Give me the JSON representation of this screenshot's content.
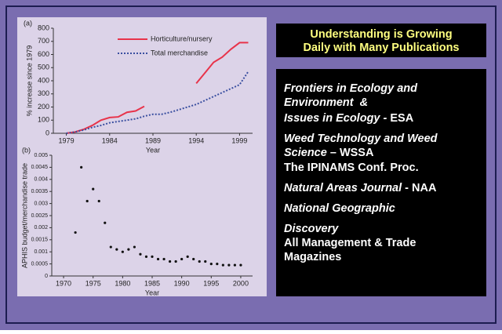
{
  "chart_data": [
    {
      "type": "line",
      "panel": "(a)",
      "ylabel": "% increase since 1979",
      "xlabel": "Year",
      "x": [
        1979,
        1980,
        1981,
        1982,
        1983,
        1984,
        1985,
        1986,
        1987,
        1988,
        1989,
        1990,
        1991,
        1992,
        1993,
        1994,
        1995,
        1996,
        1997,
        1998,
        1999,
        2000
      ],
      "series": [
        {
          "name": "Horticulture/nursery",
          "color": "#e8334a",
          "style": "solid",
          "values": [
            0,
            10,
            30,
            60,
            100,
            120,
            125,
            160,
            170,
            205,
            null,
            null,
            null,
            null,
            null,
            380,
            460,
            540,
            580,
            640,
            690,
            690
          ]
        },
        {
          "name": "Total merchandise",
          "color": "#3a4fa0",
          "style": "dotted",
          "values": [
            0,
            10,
            25,
            45,
            60,
            80,
            90,
            100,
            110,
            130,
            145,
            145,
            160,
            180,
            200,
            220,
            250,
            280,
            310,
            340,
            370,
            470
          ]
        }
      ],
      "xlim": [
        1977.5,
        2000.5
      ],
      "xticks": [
        1979,
        1984,
        1989,
        1994,
        1999
      ],
      "ylim": [
        0,
        800
      ],
      "yticks": [
        0,
        100,
        200,
        300,
        400,
        500,
        600,
        700,
        800
      ],
      "legend": "upper center"
    },
    {
      "type": "scatter",
      "panel": "(b)",
      "ylabel": "APHIS budget/merchandise trade",
      "xlabel": "Year",
      "color": "#111111",
      "x": [
        1972,
        1973,
        1974,
        1975,
        1976,
        1977,
        1978,
        1979,
        1980,
        1981,
        1982,
        1983,
        1984,
        1985,
        1986,
        1987,
        1988,
        1989,
        1990,
        1991,
        1992,
        1993,
        1994,
        1995,
        1996,
        1997,
        1998,
        1999,
        2000
      ],
      "values": [
        0.0018,
        0.0045,
        0.0031,
        0.0036,
        0.0031,
        0.0022,
        0.0012,
        0.0011,
        0.001,
        0.0011,
        0.0012,
        0.0009,
        0.0008,
        0.0008,
        0.0007,
        0.0007,
        0.0006,
        0.0006,
        0.0007,
        0.0008,
        0.0007,
        0.0006,
        0.0006,
        0.0005,
        0.0005,
        0.00045,
        0.00045,
        0.00045,
        0.00045
      ],
      "xlim": [
        1968,
        2002
      ],
      "xticks": [
        1970,
        1975,
        1980,
        1985,
        1990,
        1995,
        2000
      ],
      "ylim": [
        0,
        0.005
      ],
      "yticks": [
        0,
        0.0005,
        0.001,
        0.0015,
        0.002,
        0.0025,
        0.003,
        0.0035,
        0.004,
        0.0045,
        0.005
      ]
    }
  ],
  "heading": [
    "Understanding is Growing",
    "Daily with Many Publications"
  ],
  "publications": [
    [
      {
        "text": "Frontiers in Ecology and",
        "italic": true
      }
    ],
    [
      {
        "text": "Environment  &",
        "italic": true
      }
    ],
    [
      {
        "text": "Issues in Ecology - ",
        "italic": true
      },
      {
        "text": "ESA",
        "italic": false
      }
    ],
    [
      {
        "text": "Weed Technology and Weed",
        "italic": true
      }
    ],
    [
      {
        "text": "Science",
        "italic": true
      },
      {
        "text": " – WSSA",
        "italic": false
      }
    ],
    [
      {
        "text": "The IPINAMS Conf. Proc.",
        "italic": false
      }
    ],
    [
      {
        "text": "Natural Areas Journal",
        "italic": true
      },
      {
        "text": " - NAA",
        "italic": false
      }
    ],
    [
      {
        "text": "National Geographic",
        "italic": true
      }
    ],
    [
      {
        "text": "Discovery",
        "italic": true
      }
    ],
    [
      {
        "text": "All Management & Trade",
        "italic": false
      }
    ],
    [
      {
        "text": "Magazines",
        "italic": false
      }
    ]
  ]
}
